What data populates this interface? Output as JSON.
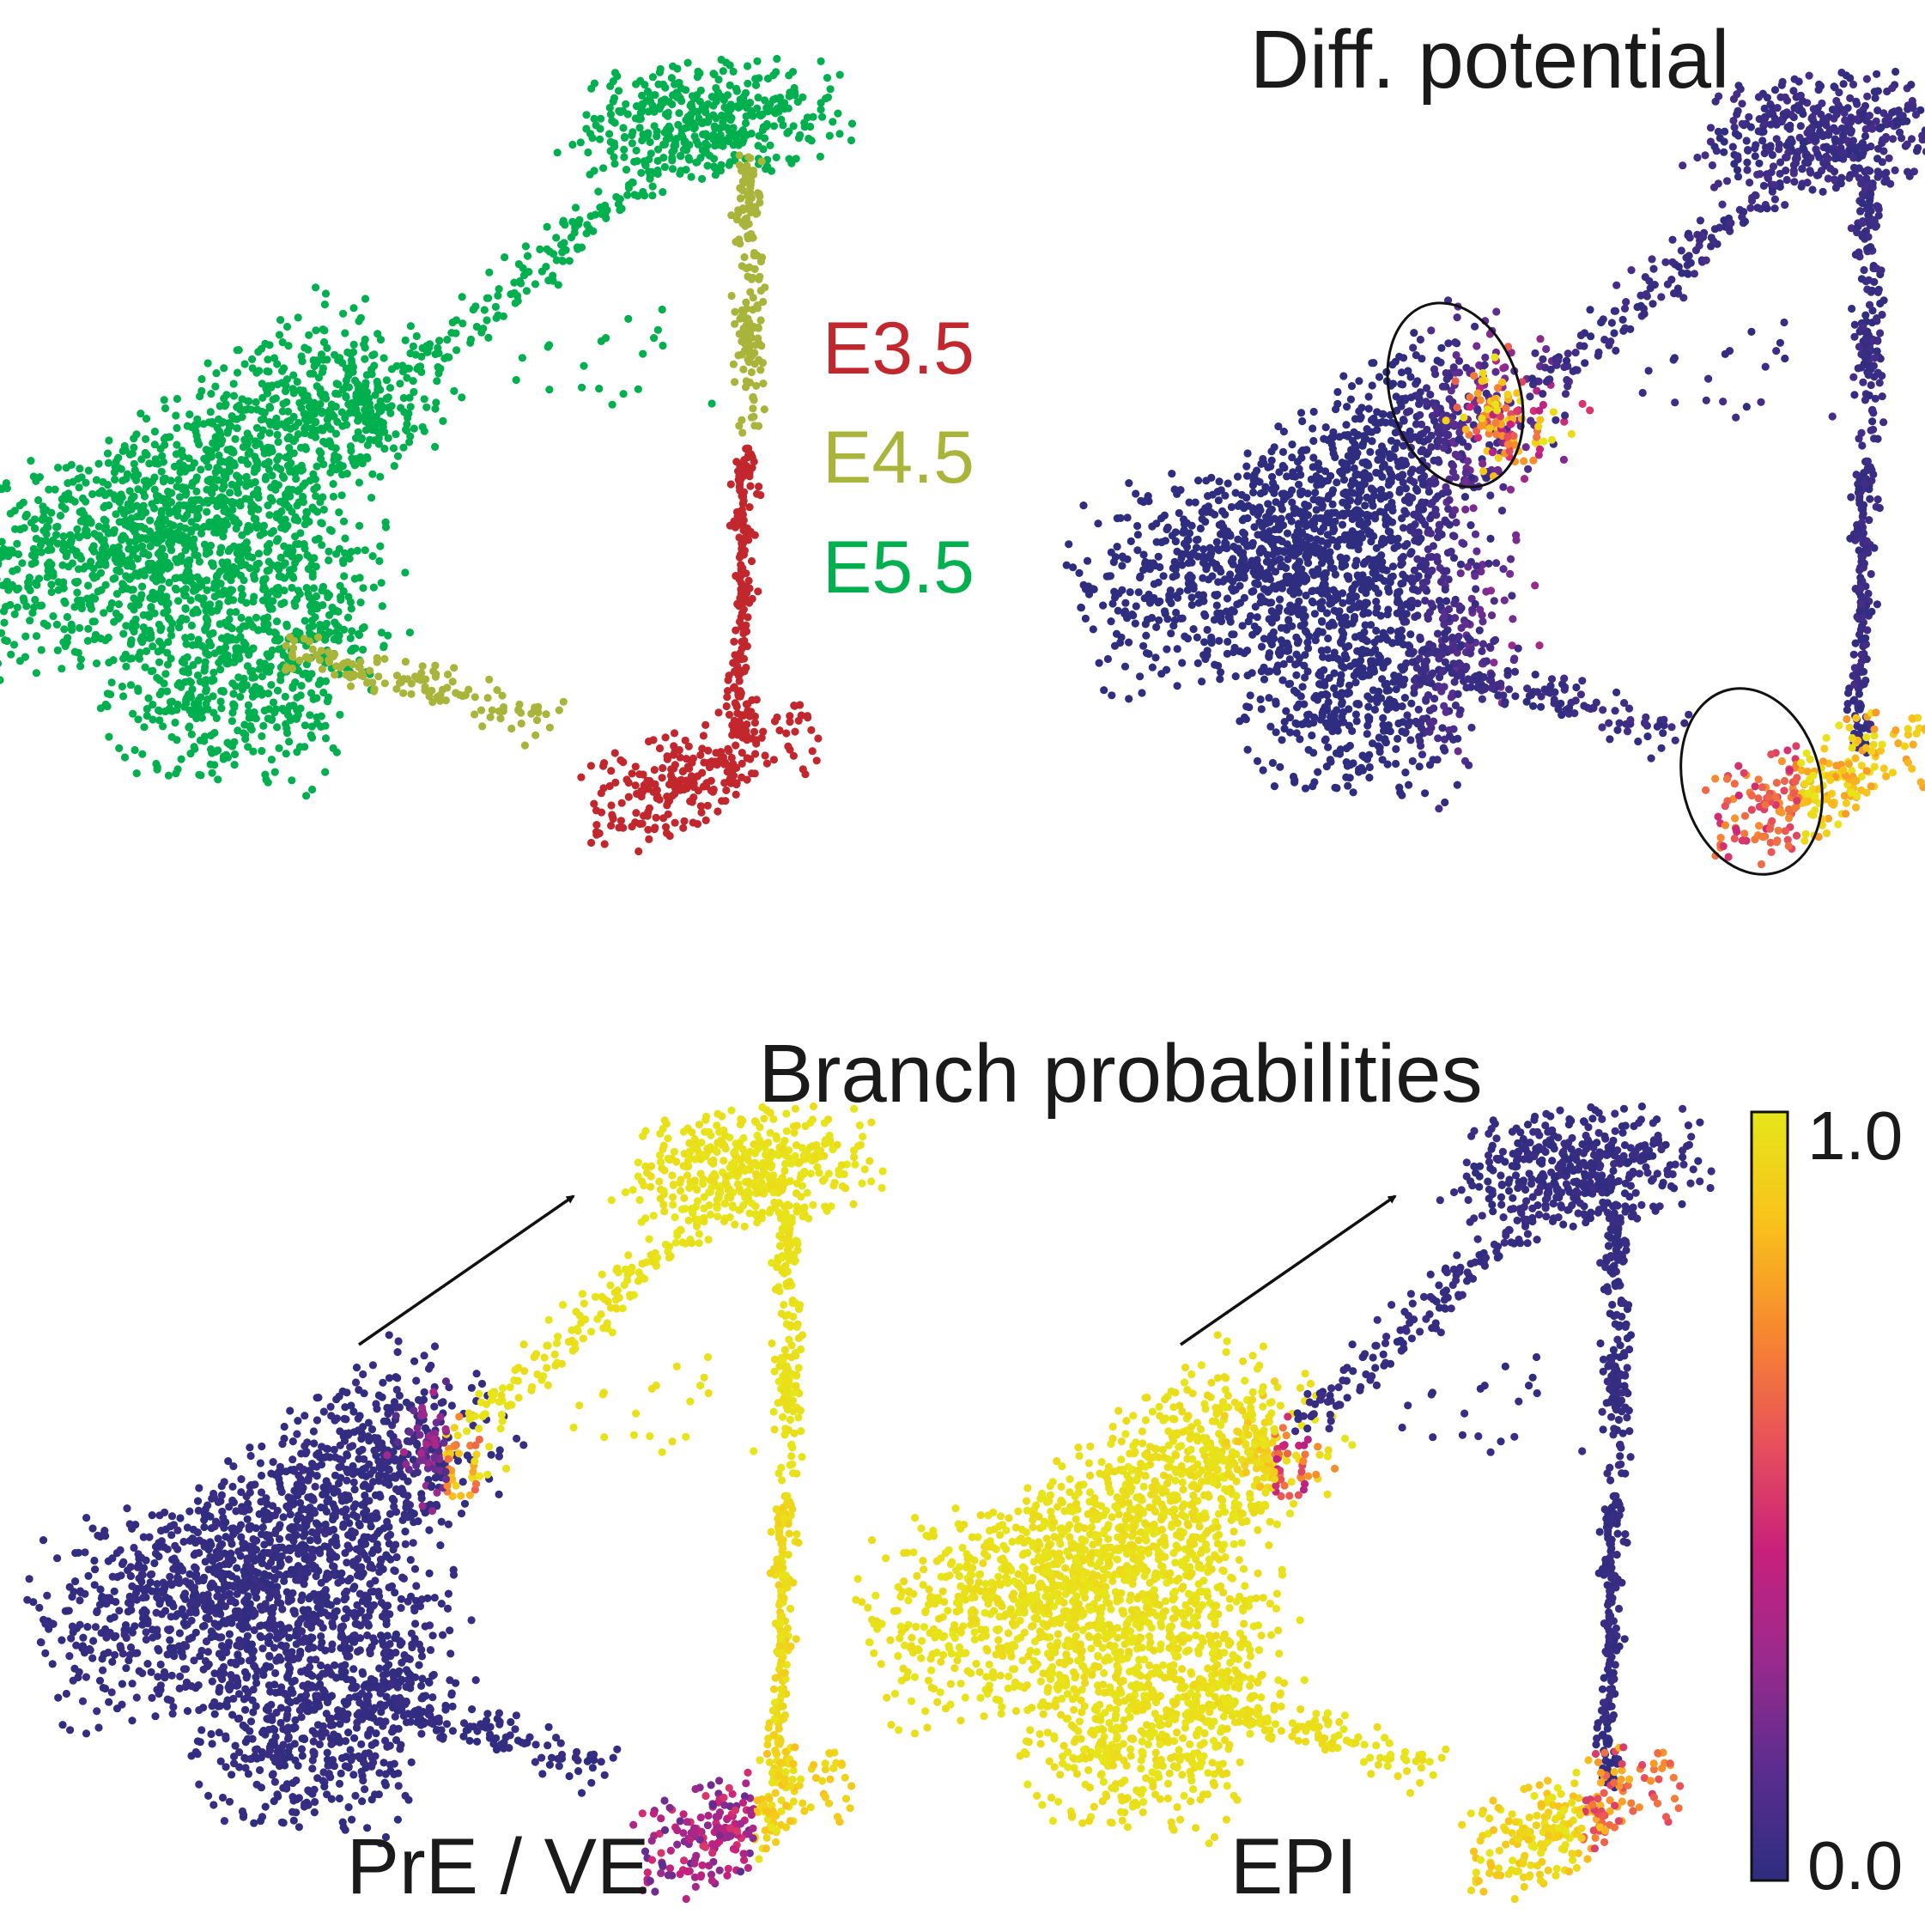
{
  "titles": {
    "diff_potential": "Diff. potential",
    "branch_probabilities": "Branch probabilities"
  },
  "legend": {
    "items": [
      {
        "label": "E3.5",
        "color": "#c1272d"
      },
      {
        "label": "E4.5",
        "color": "#a8b53a"
      },
      {
        "label": "E5.5",
        "color": "#00b04f"
      }
    ]
  },
  "colorbar": {
    "max_label": "1.0",
    "min_label": "0.0",
    "colormap": "plasma",
    "stops": [
      "#2e2d7f",
      "#5a2d8f",
      "#9a2a8e",
      "#c8207c",
      "#e8515a",
      "#f7882f",
      "#f9c21b",
      "#e6e619"
    ]
  },
  "panel_labels": {
    "pre_ve": "PrE / VE",
    "epi": "EPI"
  },
  "chart_data": [
    {
      "type": "scatter",
      "panel": "timepoint",
      "title": "",
      "color_by": "embryonic day",
      "series": [
        {
          "name": "E3.5",
          "region": "bottom-right vertex and lower right edge"
        },
        {
          "name": "E4.5",
          "region": "right edge upper half and lower-left connecting branch"
        },
        {
          "name": "E5.5",
          "region": "left cluster, top-right cluster and upper-left edge"
        }
      ]
    },
    {
      "type": "scatter",
      "panel": "differentiation-potential",
      "title": "Diff. potential",
      "color_by": "differentiation potential",
      "value_range": [
        0.0,
        1.0
      ],
      "high_regions": [
        "tip of left cluster (circled)",
        "bottom-right vertex (circled)"
      ],
      "low_regions": [
        "left cluster body",
        "right edge",
        "top-right cluster"
      ]
    },
    {
      "type": "scatter",
      "panel": "branch-probability",
      "title": "Branch probabilities",
      "branch": "PrE / VE",
      "value_range": [
        0.0,
        1.0
      ],
      "high_regions": [
        "top-right cluster",
        "right edge",
        "upper-left edge"
      ],
      "low_regions": [
        "left cluster"
      ]
    },
    {
      "type": "scatter",
      "panel": "branch-probability",
      "title": "Branch probabilities",
      "branch": "EPI",
      "value_range": [
        0.0,
        1.0
      ],
      "high_regions": [
        "left cluster",
        "lower-left connecting branch"
      ],
      "low_regions": [
        "top-right cluster",
        "right edge",
        "upper-left edge"
      ]
    }
  ]
}
